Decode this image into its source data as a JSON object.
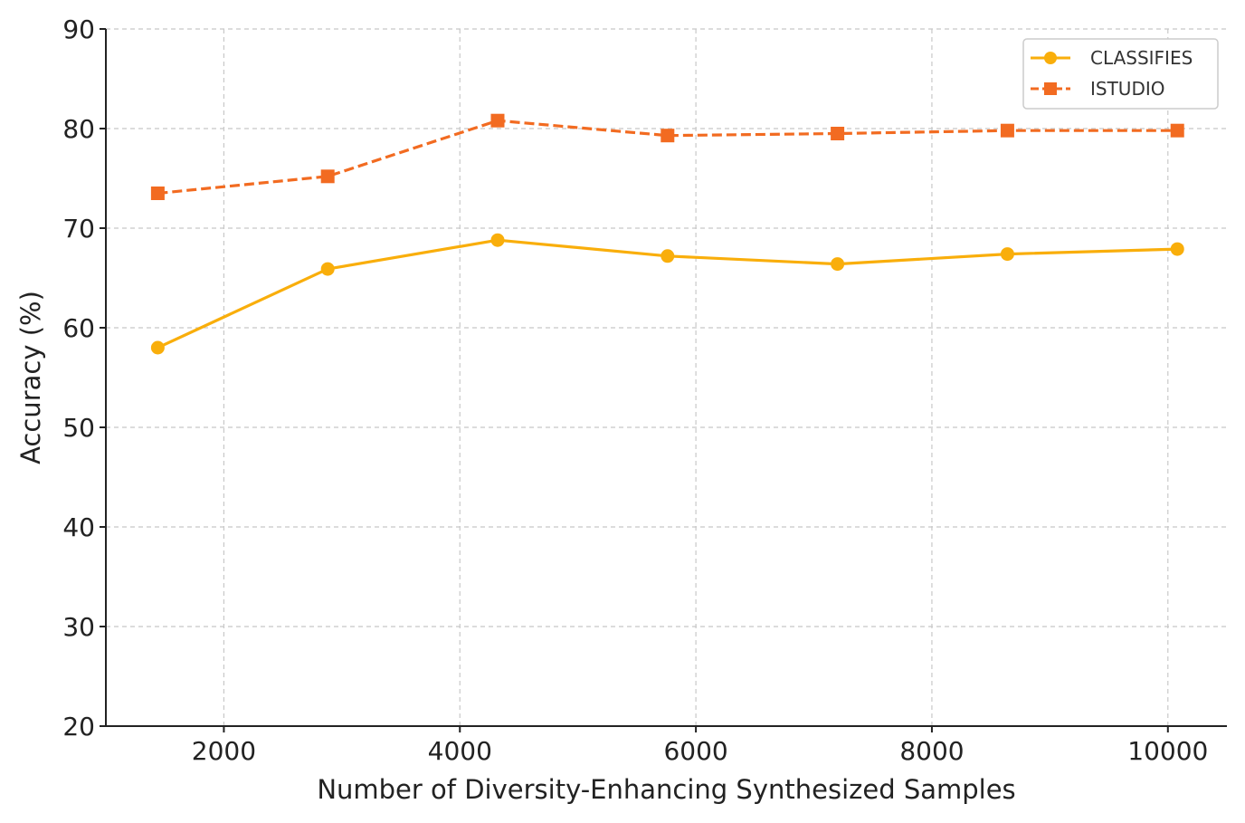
{
  "chart_data": {
    "type": "line",
    "title": "",
    "xlabel": "Number of Diversity-Enhancing Synthesized Samples",
    "ylabel": "Accuracy (%)",
    "xlim": [
      1000,
      10500
    ],
    "ylim": [
      20,
      90
    ],
    "xticks": [
      2000,
      4000,
      6000,
      8000,
      10000
    ],
    "yticks": [
      20,
      30,
      40,
      50,
      60,
      70,
      80,
      90
    ],
    "grid": true,
    "legend_position": "top-right",
    "x": [
      1440,
      2880,
      4320,
      5760,
      7200,
      8640,
      10080
    ],
    "series": [
      {
        "name": "CLASSIFIES",
        "values": [
          58.0,
          65.9,
          68.8,
          67.2,
          66.4,
          67.4,
          67.9
        ],
        "color": "#F9AE0B",
        "marker": "circle",
        "line_style": "solid"
      },
      {
        "name": "ISTUDIO",
        "values": [
          73.5,
          75.2,
          80.8,
          79.3,
          79.5,
          79.8,
          79.8
        ],
        "color": "#F26B21",
        "marker": "square",
        "line_style": "dashed"
      }
    ]
  }
}
